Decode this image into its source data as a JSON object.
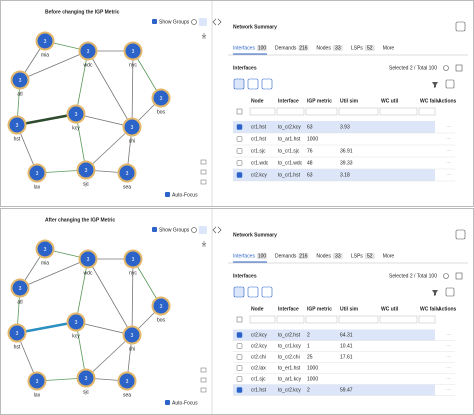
{
  "panels": [
    {
      "graph": {
        "title": "Before changing the IGP Metric",
        "show_groups": "Show Groups",
        "auto_focus": "Auto-Focus",
        "nodes": [
          {
            "name": "mia",
            "count": 3
          },
          {
            "name": "wdc",
            "count": 3
          },
          {
            "name": "nyc",
            "count": 3
          },
          {
            "name": "atl",
            "count": 3
          },
          {
            "name": "bos",
            "count": 3
          },
          {
            "name": "hst",
            "count": 3
          },
          {
            "name": "kcy",
            "count": 3
          },
          {
            "name": "chi",
            "count": 3
          },
          {
            "name": "lax",
            "count": 3
          },
          {
            "name": "sjc",
            "count": 3
          },
          {
            "name": "sea",
            "count": 3
          }
        ]
      },
      "summary": {
        "title": "Network Summary",
        "tabs": [
          {
            "name": "Interfaces",
            "count": 100
          },
          {
            "name": "Demands",
            "count": 216
          },
          {
            "name": "Nodes",
            "count": 33
          },
          {
            "name": "LSPs",
            "count": 52
          }
        ],
        "more": "More",
        "section": "Interfaces",
        "selection": "Selected 2 / Total 100",
        "columns": [
          "Node",
          "Interface",
          "IGP metric",
          "Util sim",
          "WC util",
          "WC failu",
          "Actions"
        ],
        "rows": [
          {
            "selected": true,
            "node": "cr1.hst",
            "interface": "to_cr2.kcy",
            "igp_metric": 63,
            "util_sim": 3.93
          },
          {
            "selected": false,
            "node": "cr1.hst",
            "interface": "to_ar1.hst",
            "igp_metric": 1000
          },
          {
            "selected": false,
            "node": "cr1.sjc",
            "interface": "to_cr1.sjc",
            "igp_metric": 76,
            "util_sim": 36.91
          },
          {
            "selected": false,
            "node": "cr1.wdc",
            "interface": "to_cr1.wdc",
            "igp_metric": 48,
            "util_sim": 39.33
          },
          {
            "selected": true,
            "node": "cr2.kcy",
            "interface": "to_cr1.hst",
            "igp_metric": 63,
            "util_sim": 3.18
          }
        ]
      }
    },
    {
      "graph": {
        "title": "After changing the IGP Metric",
        "show_groups": "Show Groups",
        "auto_focus": "Auto-Focus",
        "nodes": [
          {
            "name": "mia",
            "count": 3
          },
          {
            "name": "wdc",
            "count": 3
          },
          {
            "name": "nyc",
            "count": 3
          },
          {
            "name": "atl",
            "count": 3
          },
          {
            "name": "bos",
            "count": 3
          },
          {
            "name": "hst",
            "count": 3
          },
          {
            "name": "kcy",
            "count": 3
          },
          {
            "name": "chi",
            "count": 3
          },
          {
            "name": "lax",
            "count": 3
          },
          {
            "name": "sjc",
            "count": 3
          },
          {
            "name": "sea",
            "count": 3
          }
        ]
      },
      "summary": {
        "title": "Network Summary",
        "tabs": [
          {
            "name": "Interfaces",
            "count": 100
          },
          {
            "name": "Demands",
            "count": 216
          },
          {
            "name": "Nodes",
            "count": 33
          },
          {
            "name": "LSPs",
            "count": 52
          }
        ],
        "more": "More",
        "section": "Interfaces",
        "selection": "Selected 2 / Total 100",
        "columns": [
          "Node",
          "Interface",
          "IGP metric",
          "Util sim",
          "WC util",
          "WC failu",
          "Actions"
        ],
        "rows": [
          {
            "selected": true,
            "node": "cr2.kcy",
            "interface": "to_cr2.hst",
            "igp_metric": 2,
            "util_sim": 64.31
          },
          {
            "selected": false,
            "node": "cr2.kcy",
            "interface": "to_cr1.kcy",
            "igp_metric": 1,
            "util_sim": 10.41
          },
          {
            "selected": false,
            "node": "cr2.chi",
            "interface": "to_cr2.chi",
            "igp_metric": 25,
            "util_sim": 17.61
          },
          {
            "selected": false,
            "node": "cr2.lax",
            "interface": "to_er1.hst",
            "igp_metric": 1000
          },
          {
            "selected": false,
            "node": "cr1.sjc",
            "interface": "to_ar1.kcy",
            "igp_metric": 1000
          },
          {
            "selected": true,
            "node": "cr1.hst",
            "interface": "to_cr2.kcy",
            "igp_metric": 2,
            "util_sim": 59.47
          }
        ]
      }
    }
  ]
}
